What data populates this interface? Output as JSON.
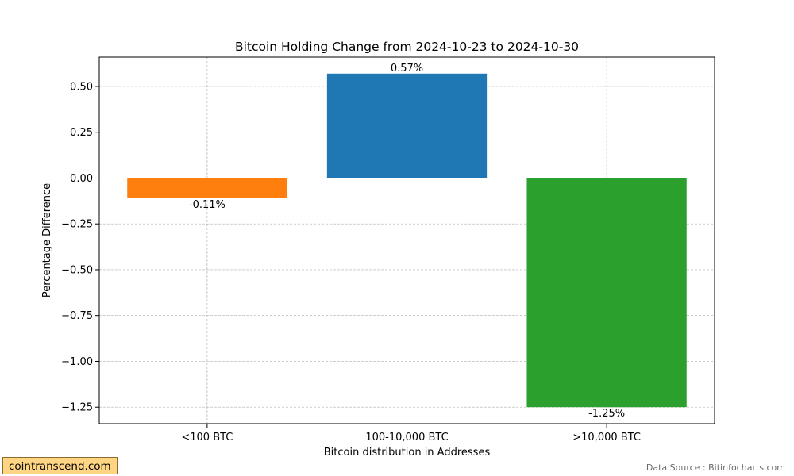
{
  "chart_data": {
    "type": "bar",
    "title": "Bitcoin Holding Change from 2024-10-23 to 2024-10-30",
    "xlabel": "Bitcoin distribution in Addresses",
    "ylabel": "Percentage Difference",
    "categories": [
      "<100 BTC",
      "100-10,000 BTC",
      ">10,000 BTC"
    ],
    "values": [
      -0.11,
      0.57,
      -1.25
    ],
    "data_labels": [
      "-0.11%",
      "0.57%",
      "-1.25%"
    ],
    "bar_colors": [
      "#ff7f0e",
      "#1f77b4",
      "#2ca02c"
    ],
    "ylim": [
      -1.34,
      0.66
    ],
    "yticks": [
      0.5,
      0.25,
      0.0,
      -0.25,
      -0.5,
      -0.75,
      -1.0,
      -1.25
    ],
    "ytick_labels": [
      "0.50",
      "0.25",
      "0.00",
      "−0.25",
      "−0.50",
      "−0.75",
      "−1.00",
      "−1.25"
    ],
    "grid": true,
    "zero_line": true
  },
  "footer": {
    "site_badge": "cointranscend.com",
    "source_note": "Data Source : Bitinfocharts.com"
  },
  "colors": {
    "badge_background": "#ffd584",
    "badge_border": "#8c6b2e",
    "source_text": "#6b6b6b",
    "grid": "#b0b0b0"
  }
}
